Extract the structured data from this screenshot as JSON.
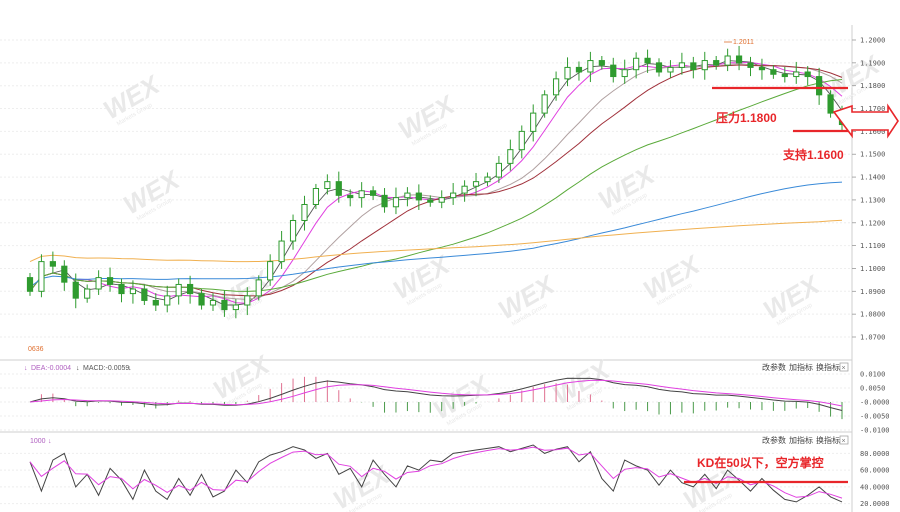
{
  "watermark": {
    "text": "WEX",
    "sub": "Markets Group"
  },
  "price_panel": {
    "low_label": "0636",
    "high_label": "1.2011",
    "y_ticks": [
      "1.2000",
      "1.1900",
      "1.1800",
      "1.1700",
      "1.1600",
      "1.1500",
      "1.1400",
      "1.1300",
      "1.1200",
      "1.1100",
      "1.1000",
      "1.0900",
      "1.0800",
      "1.0700"
    ]
  },
  "annotations": {
    "resistance": "压力1.1800",
    "support": "支持1.1600",
    "kd_note": "KD在50以下，空方掌控"
  },
  "macd_panel": {
    "legend_dea": "DEA:-0.0004",
    "legend_macd": "MACD:-0.0059",
    "y_ticks": [
      "0.0100",
      "0.0050",
      "-0.0000",
      "-0.0050",
      "-0.0100"
    ],
    "buttons": [
      "改参数",
      "加指标",
      "换指标"
    ],
    "close": "×"
  },
  "kd_panel": {
    "legend": "1000",
    "y_ticks": [
      "80.0000",
      "60.0000",
      "40.0000",
      "20.0000"
    ],
    "buttons": [
      "改参数",
      "加指标",
      "换指标"
    ],
    "close": "×"
  },
  "colors": {
    "up": "#2f9b2f",
    "down": "#2f9b2f",
    "line_red": "#e8262a",
    "ma_purple": "#e040e0",
    "ma_brown": "#a0303a",
    "ma_gray": "#b0a0a0",
    "ma_green": "#5aaa3a",
    "ma_blue": "#3a8ad8",
    "ma_orange": "#f0b050",
    "macd_pos": "#e07090",
    "macd_neg": "#4a9a4a",
    "kd_k": "#444444",
    "kd_d": "#e040e0"
  },
  "chart_data": {
    "type": "line",
    "title": "",
    "xlabel": "",
    "ylabel": "",
    "ylim": [
      1.0636,
      1.2011
    ],
    "grid": true,
    "series": [
      {
        "values": [
          1.09,
          1.103,
          1.101,
          1.094,
          1.087,
          1.091,
          1.096,
          1.093,
          1.089,
          1.091,
          1.086,
          1.084,
          1.088,
          1.093,
          1.089,
          1.084,
          1.086,
          1.082,
          1.084,
          1.088,
          1.095,
          1.103,
          1.112,
          1.121,
          1.128,
          1.135,
          1.138,
          1.132,
          1.131,
          1.134,
          1.132,
          1.127,
          1.131,
          1.133,
          1.13,
          1.129,
          1.131,
          1.133,
          1.136,
          1.138,
          1.14,
          1.146,
          1.152,
          1.16,
          1.168,
          1.176,
          1.183,
          1.188,
          1.186,
          1.191,
          1.189,
          1.184,
          1.187,
          1.192,
          1.19,
          1.186,
          1.188,
          1.19,
          1.187,
          1.191,
          1.189,
          1.193,
          1.19,
          1.188,
          1.187,
          1.185,
          1.184,
          1.186,
          1.184,
          1.176,
          1.168,
          1.163
        ]
      }
    ],
    "kd_series": [
      {
        "values": [
          70,
          35,
          72,
          80,
          40,
          55,
          30,
          62,
          48,
          25,
          60,
          35,
          25,
          50,
          30,
          55,
          28,
          35,
          60,
          45,
          70,
          78,
          82,
          88,
          84,
          74,
          80,
          55,
          62,
          40,
          72,
          55,
          40,
          65,
          60,
          72,
          70,
          80,
          82,
          84,
          86,
          88,
          82,
          86,
          90,
          80,
          85,
          88,
          70,
          82,
          50,
          35,
          72,
          65,
          60,
          42,
          60,
          45,
          40,
          55,
          38,
          60,
          48,
          35,
          50,
          36,
          25,
          22,
          30,
          40,
          28,
          22
        ]
      }
    ]
  }
}
